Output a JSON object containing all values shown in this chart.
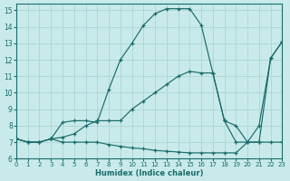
{
  "xlabel": "Humidex (Indice chaleur)",
  "background_color": "#c8eaea",
  "grid_color": "#b0d8d8",
  "line_color": "#1a6b6b",
  "xlim": [
    0,
    23
  ],
  "ylim": [
    6,
    15.4
  ],
  "xtick_vals": [
    0,
    1,
    2,
    3,
    4,
    5,
    6,
    7,
    8,
    9,
    10,
    11,
    12,
    13,
    14,
    15,
    16,
    17,
    18,
    19,
    20,
    21,
    22,
    23
  ],
  "ytick_vals": [
    6,
    7,
    8,
    9,
    10,
    11,
    12,
    13,
    14,
    15
  ],
  "curve_bottom_x": [
    0,
    1,
    2,
    3,
    4,
    5,
    6,
    7,
    8,
    9,
    10,
    11,
    12,
    13,
    14,
    15,
    16,
    17,
    18,
    19,
    20,
    21,
    22,
    23
  ],
  "curve_bottom_y": [
    7.2,
    7.0,
    7.0,
    7.2,
    7.0,
    7.0,
    7.0,
    7.0,
    6.85,
    6.75,
    6.65,
    6.6,
    6.5,
    6.45,
    6.4,
    6.35,
    6.35,
    6.35,
    6.35,
    6.35,
    7.0,
    7.0,
    7.0,
    7.0
  ],
  "curve_main_x": [
    0,
    1,
    2,
    3,
    4,
    5,
    6,
    7,
    8,
    9,
    10,
    11,
    12,
    13,
    14,
    15,
    16,
    17,
    18,
    19,
    20,
    21,
    22,
    23
  ],
  "curve_main_y": [
    7.2,
    7.0,
    7.0,
    7.2,
    8.2,
    8.3,
    8.3,
    8.2,
    10.2,
    12.0,
    13.0,
    14.1,
    14.8,
    15.1,
    15.1,
    15.1,
    14.1,
    11.2,
    8.3,
    8.0,
    7.0,
    8.0,
    12.1,
    13.1
  ],
  "curve_diag_x": [
    0,
    1,
    2,
    3,
    4,
    5,
    6,
    7,
    8,
    9,
    10,
    11,
    12,
    13,
    14,
    15,
    16,
    17,
    18,
    19,
    20,
    21,
    22,
    23
  ],
  "curve_diag_y": [
    7.2,
    7.0,
    7.0,
    7.2,
    7.3,
    7.5,
    8.0,
    8.3,
    8.3,
    8.3,
    9.0,
    9.5,
    10.0,
    10.5,
    11.0,
    11.3,
    11.2,
    11.2,
    8.3,
    7.0,
    7.0,
    7.0,
    12.1,
    13.1
  ]
}
